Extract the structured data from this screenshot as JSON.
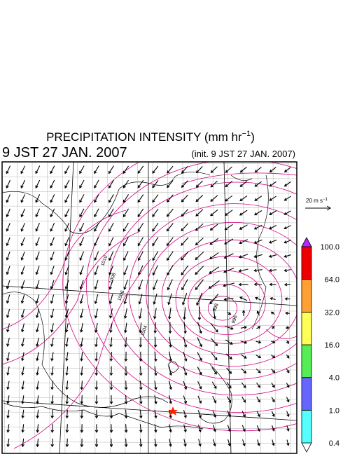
{
  "header": {
    "title": {
      "text": "PRECIPITATION INTENSITY (mm hr",
      "superscript": "−1",
      "suffix": ")"
    },
    "valid_time": "9 JST 27 JAN. 2007",
    "init_time": "(init. 9 JST 27 JAN. 2007)"
  },
  "vector_key": {
    "text": "20 m s",
    "superscript": "−1"
  },
  "colorbar": {
    "labels": [
      "0.4",
      "1.0",
      "4.0",
      "16.0",
      "32.0",
      "64.0",
      "100.0"
    ],
    "colors": [
      "#ffffff",
      "#55ffff",
      "#6666ff",
      "#55ee55",
      "#ffff55",
      "#ffa033",
      "#ee0000",
      "#bb22ff"
    ]
  },
  "contour_labels": [
    "1010",
    "1008",
    "1006",
    "1004",
    "998",
    "996"
  ]
}
